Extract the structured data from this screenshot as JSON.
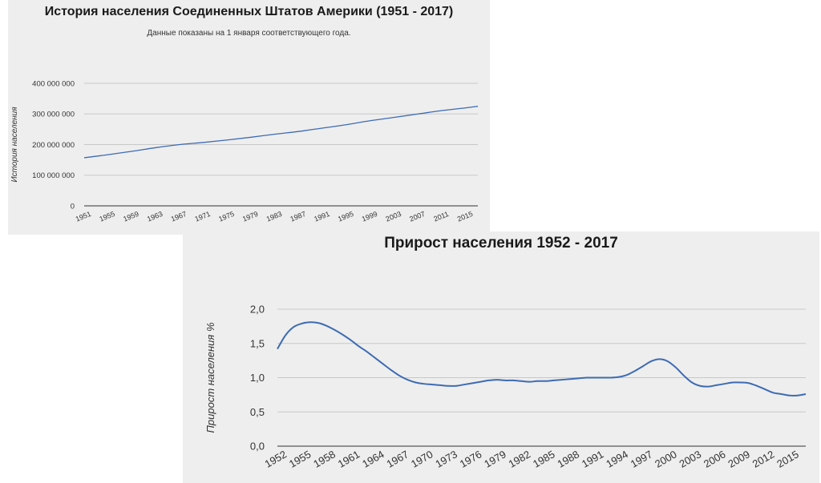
{
  "chart_data": [
    {
      "type": "line",
      "title": "История населения Соединенных Штатов Америки (1951 - 2017)",
      "subtitle": "Данные показаны на 1 января соответствующего года.",
      "xlabel": "",
      "ylabel": "История населения",
      "ylim": [
        0,
        400000000
      ],
      "y_ticks": [
        "0",
        "100 000 000",
        "200 000 000",
        "300 000 000",
        "400 000 000"
      ],
      "x_ticks": [
        "1951",
        "1955",
        "1959",
        "1963",
        "1967",
        "1971",
        "1975",
        "1979",
        "1983",
        "1987",
        "1991",
        "1995",
        "1999",
        "2003",
        "2007",
        "2011",
        "2015"
      ],
      "grid": true,
      "color": "#3d6bb3",
      "x": [
        1951,
        1955,
        1959,
        1963,
        1967,
        1971,
        1975,
        1979,
        1983,
        1987,
        1991,
        1995,
        1999,
        2003,
        2007,
        2011,
        2015,
        2017
      ],
      "y": [
        157000000,
        167000000,
        178000000,
        190000000,
        200000000,
        207000000,
        215000000,
        224000000,
        234000000,
        243000000,
        254000000,
        265000000,
        278000000,
        289000000,
        300000000,
        311000000,
        320000000,
        325000000
      ]
    },
    {
      "type": "line",
      "title": "Прирост населения 1952 - 2017",
      "xlabel": "",
      "ylabel": "Прирост населения %",
      "ylim": [
        0,
        2
      ],
      "y_ticks": [
        "0,0",
        "0,5",
        "1,0",
        "1,5",
        "2,0"
      ],
      "x_ticks": [
        "1952",
        "1955",
        "1958",
        "1961",
        "1964",
        "1967",
        "1970",
        "1973",
        "1976",
        "1979",
        "1982",
        "1985",
        "1988",
        "1991",
        "1994",
        "1997",
        "2000",
        "2003",
        "2006",
        "2009",
        "2012",
        "2015"
      ],
      "grid": true,
      "color": "#3d6bb3",
      "x": [
        1952,
        1953,
        1954,
        1955,
        1956,
        1957,
        1958,
        1959,
        1960,
        1961,
        1962,
        1963,
        1964,
        1965,
        1966,
        1967,
        1968,
        1969,
        1970,
        1971,
        1972,
        1973,
        1974,
        1975,
        1976,
        1977,
        1978,
        1979,
        1980,
        1981,
        1982,
        1983,
        1984,
        1985,
        1986,
        1987,
        1988,
        1989,
        1990,
        1991,
        1992,
        1993,
        1994,
        1995,
        1996,
        1997,
        1998,
        1999,
        2000,
        2001,
        2002,
        2003,
        2004,
        2005,
        2006,
        2007,
        2008,
        2009,
        2010,
        2011,
        2012,
        2013,
        2014,
        2015,
        2016,
        2017
      ],
      "y": [
        1.42,
        1.62,
        1.74,
        1.79,
        1.81,
        1.8,
        1.76,
        1.7,
        1.63,
        1.55,
        1.46,
        1.38,
        1.29,
        1.2,
        1.11,
        1.03,
        0.97,
        0.93,
        0.91,
        0.9,
        0.89,
        0.88,
        0.88,
        0.9,
        0.92,
        0.94,
        0.96,
        0.97,
        0.96,
        0.96,
        0.95,
        0.94,
        0.95,
        0.95,
        0.96,
        0.97,
        0.98,
        0.99,
        1.0,
        1.0,
        1.0,
        1.0,
        1.01,
        1.04,
        1.1,
        1.17,
        1.24,
        1.27,
        1.24,
        1.15,
        1.03,
        0.93,
        0.88,
        0.87,
        0.89,
        0.91,
        0.93,
        0.93,
        0.92,
        0.88,
        0.83,
        0.78,
        0.76,
        0.74,
        0.74,
        0.76
      ]
    }
  ]
}
